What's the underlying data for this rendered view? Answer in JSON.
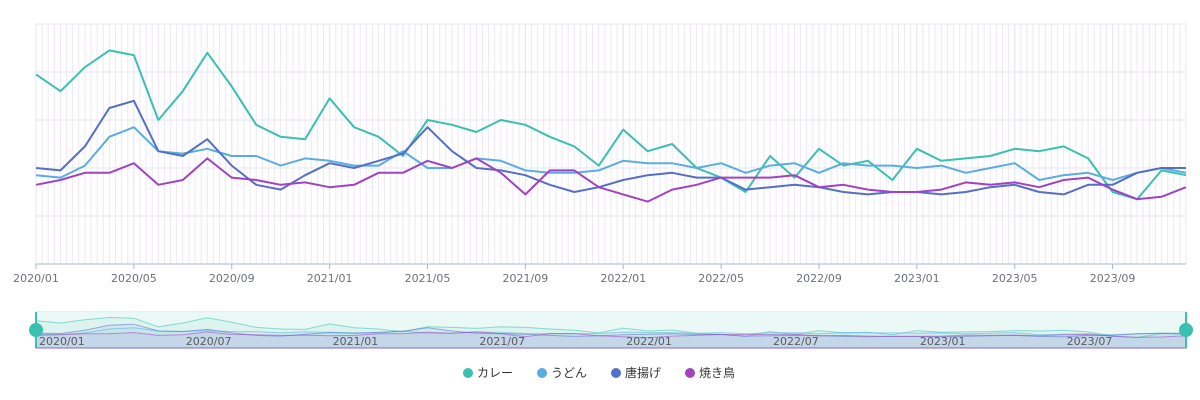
{
  "chart_data": {
    "type": "line",
    "x": [
      "2020/01",
      "2020/02",
      "2020/03",
      "2020/04",
      "2020/05",
      "2020/06",
      "2020/07",
      "2020/08",
      "2020/09",
      "2020/10",
      "2020/11",
      "2020/12",
      "2021/01",
      "2021/02",
      "2021/03",
      "2021/04",
      "2021/05",
      "2021/06",
      "2021/07",
      "2021/08",
      "2021/09",
      "2021/10",
      "2021/11",
      "2021/12",
      "2022/01",
      "2022/02",
      "2022/03",
      "2022/04",
      "2022/05",
      "2022/06",
      "2022/07",
      "2022/08",
      "2022/09",
      "2022/10",
      "2022/11",
      "2022/12",
      "2023/01",
      "2023/02",
      "2023/03",
      "2023/04",
      "2023/05",
      "2023/06",
      "2023/07",
      "2023/08",
      "2023/09",
      "2023/10",
      "2023/11",
      "2023/12"
    ],
    "x_tick_labels": [
      "2020/01",
      "2020/05",
      "2020/09",
      "2021/01",
      "2021/05",
      "2021/09",
      "2022/01",
      "2022/05",
      "2022/09",
      "2023/01",
      "2023/05",
      "2023/09"
    ],
    "ylim": [
      0,
      100
    ],
    "y_grid": [
      0,
      20,
      40,
      60,
      80,
      100
    ],
    "grid": true,
    "legend_position": "bottom-center",
    "series": [
      {
        "name": "カレー",
        "color": "#3bbfb0",
        "values": [
          79,
          72,
          82,
          89,
          87,
          60,
          72,
          88,
          74,
          58,
          53,
          52,
          69,
          57,
          53,
          45,
          60,
          58,
          55,
          60,
          58,
          53,
          49,
          41,
          56,
          47,
          50,
          40,
          36,
          30,
          45,
          36,
          48,
          41,
          43,
          35,
          48,
          43,
          44,
          45,
          48,
          47,
          49,
          44,
          30,
          27,
          39,
          37
        ]
      },
      {
        "name": "うどん",
        "color": "#5aade0",
        "values": [
          37,
          36,
          41,
          53,
          57,
          47,
          46,
          48,
          45,
          45,
          41,
          44,
          43,
          41,
          41,
          47,
          40,
          40,
          44,
          43,
          39,
          38,
          38,
          39,
          43,
          42,
          42,
          40,
          42,
          38,
          41,
          42,
          38,
          42,
          41,
          41,
          40,
          41,
          38,
          40,
          42,
          35,
          37,
          38,
          35,
          38,
          40,
          38
        ]
      },
      {
        "name": "唐揚げ",
        "color": "#5470c6",
        "values": [
          40,
          39,
          49,
          65,
          68,
          47,
          45,
          52,
          41,
          33,
          31,
          37,
          42,
          40,
          43,
          46,
          57,
          47,
          40,
          39,
          37,
          33,
          30,
          32,
          35,
          37,
          38,
          36,
          36,
          31,
          32,
          33,
          32,
          30,
          29,
          30,
          30,
          29,
          30,
          32,
          33,
          30,
          29,
          33,
          33,
          38,
          40,
          40
        ]
      },
      {
        "name": "焼き鳥",
        "color": "#a043c0",
        "values": [
          33,
          35,
          38,
          38,
          42,
          33,
          35,
          44,
          36,
          35,
          33,
          34,
          32,
          33,
          38,
          38,
          43,
          40,
          44,
          38,
          29,
          39,
          39,
          32,
          29,
          26,
          31,
          33,
          36,
          36,
          36,
          37,
          32,
          33,
          31,
          30,
          30,
          31,
          34,
          33,
          34,
          32,
          35,
          36,
          31,
          27,
          28,
          32
        ]
      }
    ],
    "data_zoom": {
      "range_percent": [
        0,
        100
      ],
      "tick_labels": [
        "2020/01",
        "2020/07",
        "2021/01",
        "2021/07",
        "2022/01",
        "2022/07",
        "2023/01",
        "2023/07"
      ]
    }
  },
  "colors": {
    "axis_line": "#a9b4d0",
    "grid_line": "#e4e7f1",
    "minor_grid": "#efe7f5",
    "zoom_fill": "#e8f7f5",
    "zoom_border": "#3bbfb0"
  }
}
